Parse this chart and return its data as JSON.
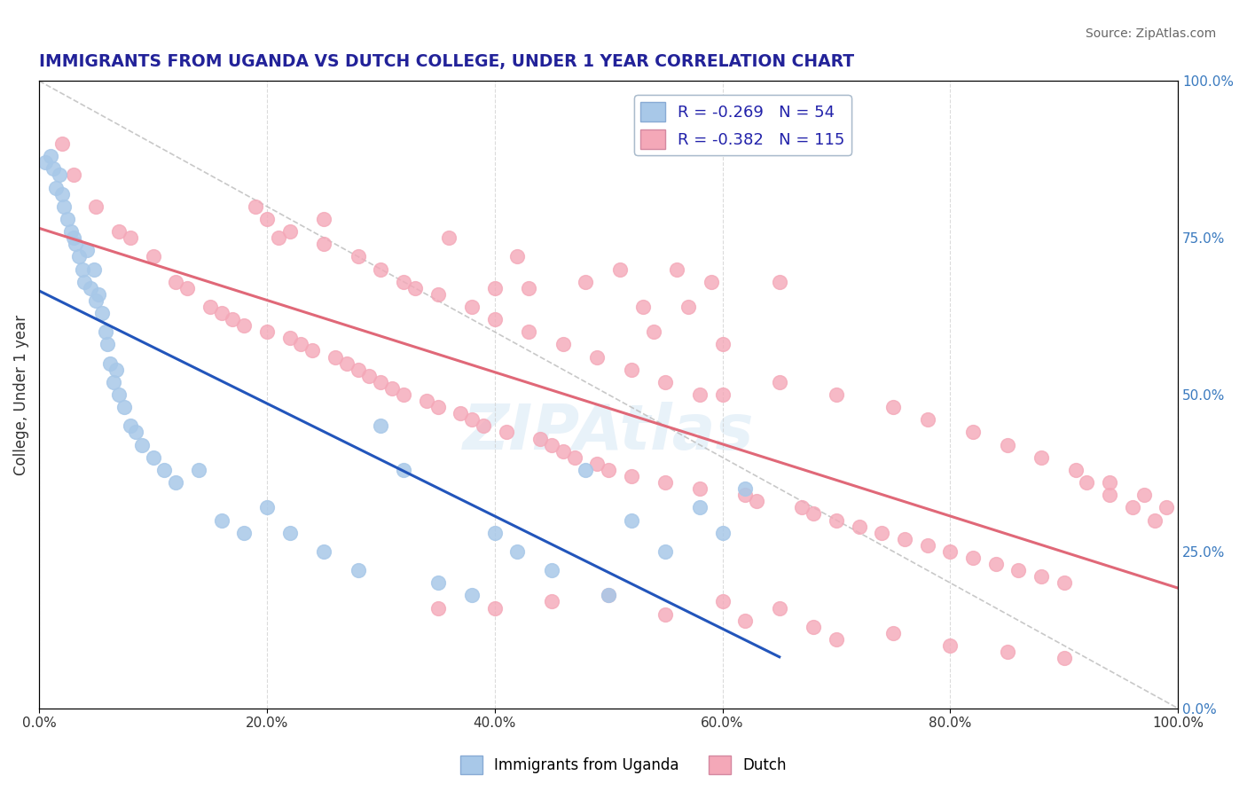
{
  "title": "IMMIGRANTS FROM UGANDA VS DUTCH COLLEGE, UNDER 1 YEAR CORRELATION CHART",
  "source": "Source: ZipAtlas.com",
  "ylabel": "College, Under 1 year",
  "legend_entry1": "Immigrants from Uganda",
  "legend_entry2": "Dutch",
  "r1": -0.269,
  "n1": 54,
  "r2": -0.382,
  "n2": 115,
  "color_blue": "#a8c8e8",
  "color_pink": "#f4a8b8",
  "line_color_blue": "#2255bb",
  "line_color_pink": "#e06878",
  "background_color": "#ffffff",
  "blue_x": [
    0.5,
    1.0,
    1.2,
    1.5,
    1.8,
    2.0,
    2.2,
    2.5,
    2.8,
    3.0,
    3.2,
    3.5,
    3.8,
    4.0,
    4.2,
    4.5,
    4.8,
    5.0,
    5.2,
    5.5,
    5.8,
    6.0,
    6.2,
    6.5,
    6.8,
    7.0,
    7.5,
    8.0,
    8.5,
    9.0,
    10.0,
    11.0,
    12.0,
    14.0,
    16.0,
    18.0,
    20.0,
    22.0,
    25.0,
    28.0,
    30.0,
    32.0,
    35.0,
    38.0,
    40.0,
    42.0,
    45.0,
    48.0,
    50.0,
    52.0,
    55.0,
    58.0,
    60.0,
    62.0
  ],
  "blue_y": [
    87,
    88,
    86,
    83,
    85,
    82,
    80,
    78,
    76,
    75,
    74,
    72,
    70,
    68,
    73,
    67,
    70,
    65,
    66,
    63,
    60,
    58,
    55,
    52,
    54,
    50,
    48,
    45,
    44,
    42,
    40,
    38,
    36,
    38,
    30,
    28,
    32,
    28,
    25,
    22,
    45,
    38,
    20,
    18,
    28,
    25,
    22,
    38,
    18,
    30,
    25,
    32,
    28,
    35
  ],
  "pink_x": [
    2.0,
    3.0,
    5.0,
    7.0,
    8.0,
    10.0,
    12.0,
    13.0,
    15.0,
    16.0,
    17.0,
    18.0,
    19.0,
    20.0,
    21.0,
    22.0,
    23.0,
    24.0,
    25.0,
    26.0,
    27.0,
    28.0,
    29.0,
    30.0,
    31.0,
    32.0,
    33.0,
    34.0,
    35.0,
    36.0,
    37.0,
    38.0,
    39.0,
    40.0,
    41.0,
    42.0,
    43.0,
    44.0,
    45.0,
    46.0,
    47.0,
    48.0,
    49.0,
    50.0,
    51.0,
    52.0,
    53.0,
    54.0,
    55.0,
    56.0,
    57.0,
    58.0,
    59.0,
    60.0,
    62.0,
    63.0,
    65.0,
    67.0,
    68.0,
    70.0,
    72.0,
    74.0,
    76.0,
    78.0,
    80.0,
    82.0,
    84.0,
    86.0,
    88.0,
    90.0,
    35.0,
    40.0,
    45.0,
    50.0,
    55.0,
    60.0,
    62.0,
    65.0,
    68.0,
    70.0,
    75.0,
    80.0,
    85.0,
    90.0,
    92.0,
    94.0,
    96.0,
    98.0,
    60.0,
    65.0,
    70.0,
    75.0,
    78.0,
    82.0,
    85.0,
    88.0,
    91.0,
    94.0,
    97.0,
    99.0,
    20.0,
    22.0,
    25.0,
    28.0,
    30.0,
    32.0,
    35.0,
    38.0,
    40.0,
    43.0,
    46.0,
    49.0,
    52.0,
    55.0,
    58.0
  ],
  "pink_y": [
    90,
    85,
    80,
    76,
    75,
    72,
    68,
    67,
    64,
    63,
    62,
    61,
    80,
    60,
    75,
    59,
    58,
    57,
    78,
    56,
    55,
    54,
    53,
    52,
    51,
    50,
    67,
    49,
    48,
    75,
    47,
    46,
    45,
    67,
    44,
    72,
    67,
    43,
    42,
    41,
    40,
    68,
    39,
    38,
    70,
    37,
    64,
    60,
    36,
    70,
    64,
    35,
    68,
    58,
    34,
    33,
    68,
    32,
    31,
    30,
    29,
    28,
    27,
    26,
    25,
    24,
    23,
    22,
    21,
    20,
    16,
    16,
    17,
    18,
    15,
    17,
    14,
    16,
    13,
    11,
    12,
    10,
    9,
    8,
    36,
    34,
    32,
    30,
    50,
    52,
    50,
    48,
    46,
    44,
    42,
    40,
    38,
    36,
    34,
    32,
    78,
    76,
    74,
    72,
    70,
    68,
    66,
    64,
    62,
    60,
    58,
    56,
    54,
    52,
    50
  ],
  "xlim": [
    0,
    100
  ],
  "ylim": [
    0,
    100
  ],
  "right_yticks": [
    0,
    25,
    50,
    75,
    100
  ],
  "right_yticklabels": [
    "0.0%",
    "25.0%",
    "50.0%",
    "75.0%",
    "100.0%"
  ],
  "xtick_labels": [
    "0.0%",
    "20.0%",
    "40.0%",
    "60.0%",
    "80.0%",
    "100.0%"
  ],
  "xtick_positions": [
    0,
    20,
    40,
    60,
    80,
    100
  ]
}
